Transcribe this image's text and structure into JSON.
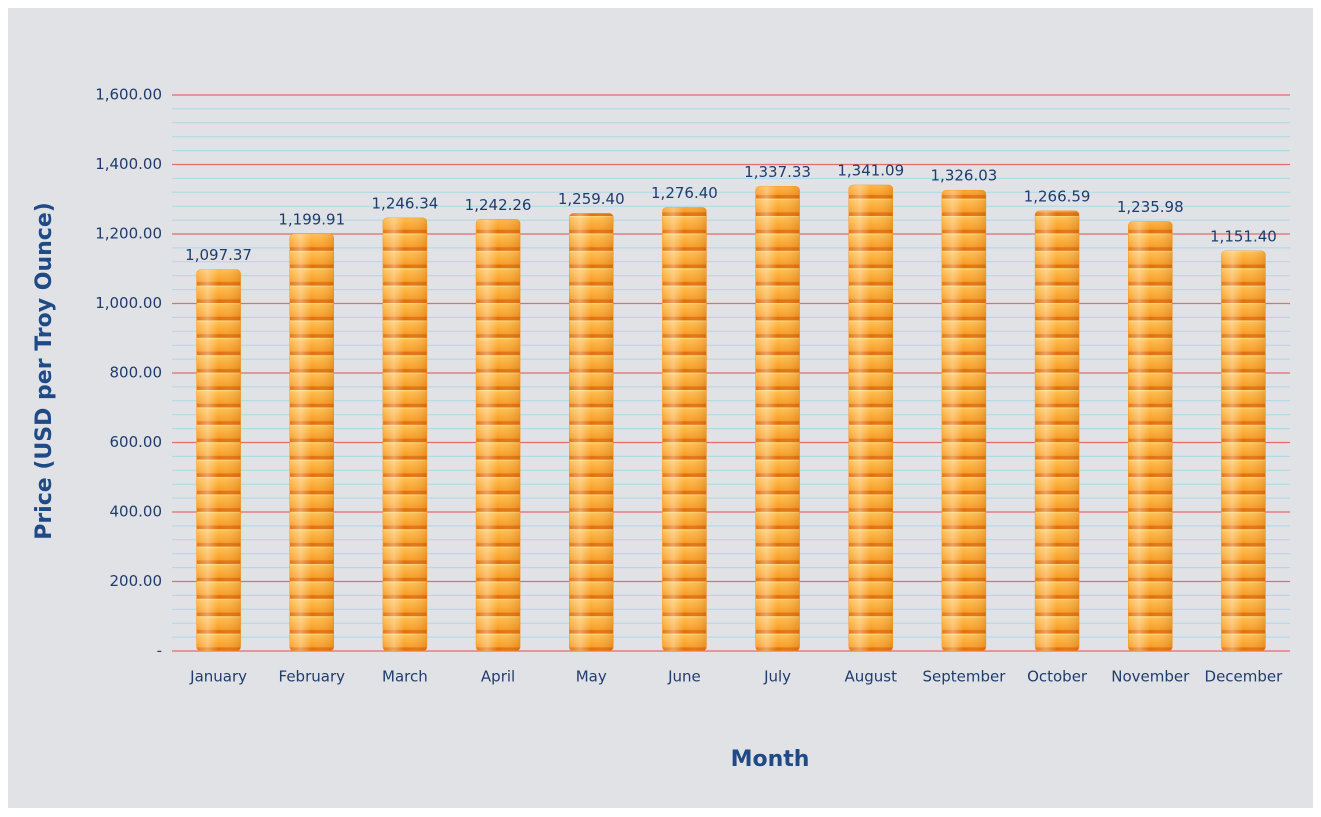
{
  "chart_data": {
    "type": "bar",
    "y_axis_label": "Price (USD per Troy Ounce)",
    "x_axis_label": "Month",
    "categories": [
      "January",
      "February",
      "March",
      "April",
      "May",
      "June",
      "July",
      "August",
      "September",
      "October",
      "November",
      "December"
    ],
    "values": [
      1097.37,
      1199.91,
      1246.34,
      1242.26,
      1259.4,
      1276.4,
      1337.33,
      1341.09,
      1326.03,
      1266.59,
      1235.98,
      1151.4
    ],
    "value_labels": [
      "1,097.37",
      "1,199.91",
      "1,246.34",
      "1,242.26",
      "1,259.40",
      "1,276.40",
      "1,337.33",
      "1,341.09",
      "1,326.03",
      "1,266.59",
      "1,235.98",
      "1,151.40"
    ],
    "color": "#f7941d",
    "ylim": [
      0,
      1600
    ],
    "yticks": [
      {
        "value": 0,
        "label": "-"
      },
      {
        "value": 200,
        "label": "200.00"
      },
      {
        "value": 400,
        "label": "400.00"
      },
      {
        "value": 600,
        "label": "600.00"
      },
      {
        "value": 800,
        "label": "800.00"
      },
      {
        "value": 1000,
        "label": "1,000.00"
      },
      {
        "value": 1200,
        "label": "1,200.00"
      },
      {
        "value": 1400,
        "label": "1,400.00"
      },
      {
        "value": 1600,
        "label": "1,600.00"
      }
    ],
    "grid": true,
    "grid_color": "#e46c6c",
    "minor_grid_divisions": 5,
    "minor_grid_color": "#a9d9e8"
  }
}
